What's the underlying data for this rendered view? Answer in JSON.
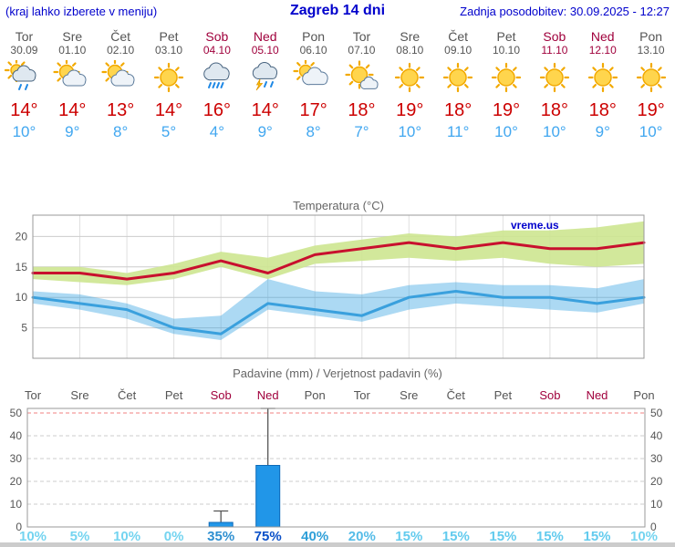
{
  "header": {
    "left_note": "(kraj lahko izberete v meniju)",
    "title": "Zagreb 14 dni",
    "updated": "Zadnja posodobitev: 30.09.2025 - 12:27"
  },
  "watermark": "vreme.us",
  "days": [
    {
      "name": "Tor",
      "date": "30.09",
      "weekend": false,
      "icon": "showers",
      "high": "14°",
      "low": "10°"
    },
    {
      "name": "Sre",
      "date": "01.10",
      "weekend": false,
      "icon": "partly-cloudy",
      "high": "14°",
      "low": "9°"
    },
    {
      "name": "Čet",
      "date": "02.10",
      "weekend": false,
      "icon": "partly-cloudy",
      "high": "13°",
      "low": "8°"
    },
    {
      "name": "Pet",
      "date": "03.10",
      "weekend": false,
      "icon": "sunny",
      "high": "14°",
      "low": "5°"
    },
    {
      "name": "Sob",
      "date": "04.10",
      "weekend": true,
      "icon": "rain",
      "high": "16°",
      "low": "4°"
    },
    {
      "name": "Ned",
      "date": "05.10",
      "weekend": true,
      "icon": "storm",
      "high": "14°",
      "low": "9°"
    },
    {
      "name": "Pon",
      "date": "06.10",
      "weekend": false,
      "icon": "mostly-cloudy",
      "high": "17°",
      "low": "8°"
    },
    {
      "name": "Tor",
      "date": "07.10",
      "weekend": false,
      "icon": "mostly-sunny",
      "high": "18°",
      "low": "7°"
    },
    {
      "name": "Sre",
      "date": "08.10",
      "weekend": false,
      "icon": "sunny",
      "high": "19°",
      "low": "10°"
    },
    {
      "name": "Čet",
      "date": "09.10",
      "weekend": false,
      "icon": "sunny",
      "high": "18°",
      "low": "11°"
    },
    {
      "name": "Pet",
      "date": "10.10",
      "weekend": false,
      "icon": "sunny",
      "high": "19°",
      "low": "10°"
    },
    {
      "name": "Sob",
      "date": "11.10",
      "weekend": true,
      "icon": "sunny",
      "high": "18°",
      "low": "10°"
    },
    {
      "name": "Ned",
      "date": "12.10",
      "weekend": true,
      "icon": "sunny",
      "high": "18°",
      "low": "9°"
    },
    {
      "name": "Pon",
      "date": "13.10",
      "weekend": false,
      "icon": "sunny",
      "high": "19°",
      "low": "10°"
    }
  ],
  "chart_data": [
    {
      "type": "line",
      "title": "Temperatura (°C)",
      "x_labels": [
        "Tor",
        "Sre",
        "Čet",
        "Pet",
        "Sob",
        "Ned",
        "Pon",
        "Tor",
        "Sre",
        "Čet",
        "Pet",
        "Sob",
        "Ned",
        "Pon"
      ],
      "ylim": [
        0,
        23.5
      ],
      "yticks": [
        5,
        10,
        15,
        20
      ],
      "grid": true,
      "legend": "none",
      "watermark": "vreme.us",
      "series": [
        {
          "name": "max_temp",
          "color": "#c8102e",
          "values": [
            14,
            14,
            13,
            14,
            16,
            14,
            17,
            18,
            19,
            18,
            19,
            18,
            18,
            19
          ]
        },
        {
          "name": "min_temp",
          "color": "#3aa0dd",
          "values": [
            10,
            9,
            8,
            5,
            4,
            9,
            8,
            7,
            10,
            11,
            10,
            10,
            9,
            10
          ]
        },
        {
          "name": "max_range_upper",
          "values": [
            15,
            15,
            14,
            15.5,
            17.5,
            16.5,
            18.5,
            19.5,
            20.5,
            20,
            21,
            21,
            21.5,
            22.5
          ]
        },
        {
          "name": "max_range_lower",
          "values": [
            13,
            12.5,
            12,
            13,
            15,
            13,
            15.5,
            16,
            16.5,
            16,
            16.5,
            15.5,
            15,
            15.5
          ]
        },
        {
          "name": "min_range_upper",
          "values": [
            11,
            10.5,
            9,
            6.5,
            7,
            13,
            11,
            10.5,
            12,
            12.5,
            12,
            12,
            11.5,
            13
          ]
        },
        {
          "name": "min_range_lower",
          "values": [
            9,
            8,
            6.5,
            4,
            3,
            8,
            7,
            6,
            8,
            9,
            8.5,
            8,
            7.5,
            9
          ]
        }
      ]
    },
    {
      "type": "bar",
      "title": "Padavine (mm) / Verjetnost padavin (%)",
      "x_labels": [
        "Tor",
        "Sre",
        "Čet",
        "Pet",
        "Sob",
        "Ned",
        "Pon",
        "Tor",
        "Sre",
        "Čet",
        "Pet",
        "Sob",
        "Ned",
        "Pon"
      ],
      "x_label_weekend": [
        false,
        false,
        false,
        false,
        true,
        true,
        false,
        false,
        false,
        false,
        false,
        true,
        true,
        false
      ],
      "ylim": [
        0,
        52
      ],
      "yticks": [
        0,
        10,
        20,
        30,
        40,
        50
      ],
      "bar_color": "#2196e8",
      "precip_mm": [
        0,
        0,
        0,
        0,
        2,
        27,
        0,
        0,
        0,
        0,
        0,
        0,
        0,
        0
      ],
      "precip_max_mm": [
        0,
        0,
        0,
        0,
        7,
        52,
        0,
        0,
        0,
        0,
        0,
        0,
        0,
        0
      ],
      "probability": [
        {
          "label": "10%",
          "color": "#74d4f0"
        },
        {
          "label": "5%",
          "color": "#74d4f0"
        },
        {
          "label": "10%",
          "color": "#74d4f0"
        },
        {
          "label": "0%",
          "color": "#74d4f0"
        },
        {
          "label": "35%",
          "color": "#2e8fd0"
        },
        {
          "label": "75%",
          "color": "#0a50c8"
        },
        {
          "label": "40%",
          "color": "#2e9fd8"
        },
        {
          "label": "20%",
          "color": "#55bce8"
        },
        {
          "label": "15%",
          "color": "#63cbee"
        },
        {
          "label": "15%",
          "color": "#63cbee"
        },
        {
          "label": "15%",
          "color": "#63cbee"
        },
        {
          "label": "15%",
          "color": "#63cbee"
        },
        {
          "label": "15%",
          "color": "#63cbee"
        },
        {
          "label": "10%",
          "color": "#74d4f0"
        }
      ]
    }
  ],
  "colors": {
    "header_text": "#0000cc",
    "weekday_text": "#555555",
    "weekend_text": "#a0003c",
    "high_temp": "#cc0000",
    "low_temp": "#41a7f0",
    "max_band": "#cde690",
    "min_band": "#2fa0e0"
  }
}
